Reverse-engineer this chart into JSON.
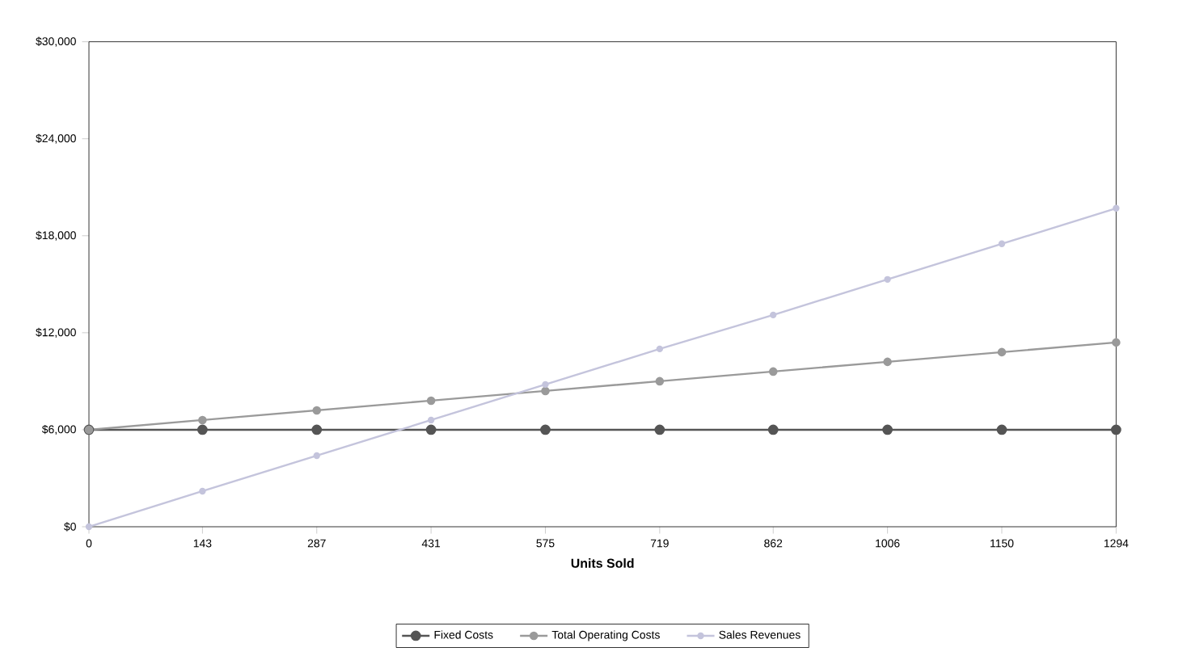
{
  "chart_data": {
    "type": "line",
    "xlabel": "Units Sold",
    "x": [
      0,
      143,
      287,
      431,
      575,
      719,
      862,
      1006,
      1150,
      1294
    ],
    "series": [
      {
        "name": "Fixed Costs",
        "color": "#555555",
        "values": [
          6000,
          6000,
          6000,
          6000,
          6000,
          6000,
          6000,
          6000,
          6000,
          6000
        ]
      },
      {
        "name": "Total Operating Costs",
        "color": "#9a9a9a",
        "values": [
          6000,
          6600,
          7200,
          7800,
          8400,
          9000,
          9600,
          10200,
          10800,
          11400
        ]
      },
      {
        "name": "Sales Revenues",
        "color": "#c4c4dc",
        "values": [
          0,
          2200,
          4400,
          6600,
          8800,
          11000,
          13100,
          15300,
          17500,
          19700
        ]
      }
    ],
    "xlim": [
      0,
      1294
    ],
    "xticks": [
      0,
      143,
      287,
      431,
      575,
      719,
      862,
      1006,
      1150,
      1294
    ],
    "ylim": [
      0,
      30000
    ],
    "yticks": [
      {
        "value": 0,
        "label": "$0"
      },
      {
        "value": 6000,
        "label": "$6,000"
      },
      {
        "value": 12000,
        "label": "$12,000"
      },
      {
        "value": 18000,
        "label": "$18,000"
      },
      {
        "value": 24000,
        "label": "$24,000"
      },
      {
        "value": 30000,
        "label": "$30,000"
      }
    ],
    "grid": false,
    "legend": "bottom",
    "marker": "circle",
    "line_style": "solid"
  }
}
